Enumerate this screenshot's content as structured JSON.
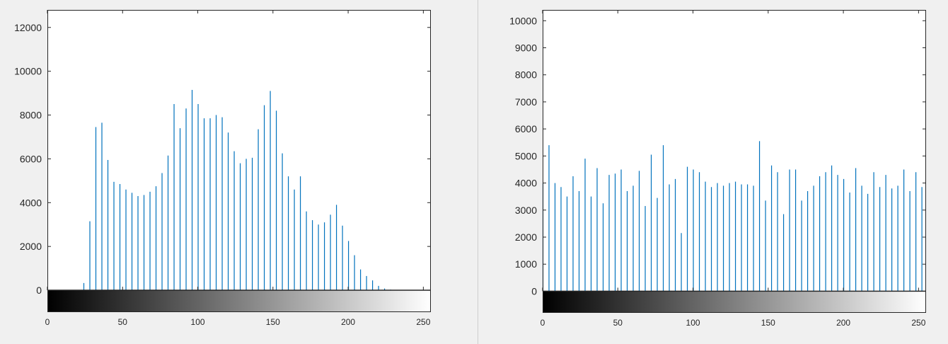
{
  "figure": {
    "colors": {
      "background": "#f0f0f0",
      "axes_background": "#ffffff",
      "axis": "#262626",
      "stem": "#0072bd",
      "divider": "#cfcfcf"
    }
  },
  "chart_data": [
    {
      "type": "bar",
      "subtype": "stem-histogram",
      "title": "",
      "xlabel": "",
      "ylabel": "",
      "xlim": [
        0,
        255
      ],
      "ylim": [
        -1000,
        12800
      ],
      "xticks": [
        0,
        50,
        100,
        150,
        200,
        250
      ],
      "yticks": [
        0,
        2000,
        4000,
        6000,
        8000,
        10000,
        12000
      ],
      "grid": false,
      "legend": "none",
      "colorbar": "grayscale gradient below x-axis (0 = black, 255 = white)",
      "x": [
        0,
        4,
        8,
        12,
        16,
        20,
        24,
        28,
        32,
        36,
        40,
        44,
        48,
        52,
        56,
        60,
        64,
        68,
        72,
        76,
        80,
        84,
        88,
        92,
        96,
        100,
        104,
        108,
        112,
        116,
        120,
        124,
        128,
        132,
        136,
        140,
        144,
        148,
        152,
        156,
        160,
        164,
        168,
        172,
        176,
        180,
        184,
        188,
        192,
        196,
        200,
        204,
        208,
        212,
        216,
        220,
        224,
        228,
        232,
        236,
        240,
        244,
        248,
        252
      ],
      "values": [
        0,
        0,
        0,
        0,
        0,
        0,
        330,
        3150,
        7450,
        7650,
        5950,
        4950,
        4850,
        4600,
        4450,
        4300,
        4350,
        4500,
        4750,
        5350,
        6150,
        8500,
        7400,
        8300,
        9150,
        8500,
        7850,
        7850,
        8000,
        7900,
        7200,
        6350,
        5800,
        6000,
        6050,
        7350,
        8450,
        9100,
        8200,
        6250,
        5200,
        4600,
        5200,
        3600,
        3200,
        3000,
        3100,
        3450,
        3900,
        2950,
        2250,
        1600,
        950,
        650,
        450,
        200,
        80,
        30,
        10,
        0,
        0,
        0,
        0,
        0
      ]
    },
    {
      "type": "bar",
      "subtype": "stem-histogram",
      "title": "",
      "xlabel": "",
      "ylabel": "",
      "xlim": [
        0,
        255
      ],
      "ylim": [
        -800,
        10400
      ],
      "xticks": [
        0,
        50,
        100,
        150,
        200,
        250
      ],
      "yticks": [
        0,
        1000,
        2000,
        3000,
        4000,
        5000,
        6000,
        7000,
        8000,
        9000,
        10000
      ],
      "grid": false,
      "legend": "none",
      "colorbar": "grayscale gradient below x-axis (0 = black, 255 = white)",
      "x": [
        0,
        4,
        8,
        12,
        16,
        20,
        24,
        28,
        32,
        36,
        40,
        44,
        48,
        52,
        56,
        60,
        64,
        68,
        72,
        76,
        80,
        84,
        88,
        92,
        96,
        100,
        104,
        108,
        112,
        116,
        120,
        124,
        128,
        132,
        136,
        140,
        144,
        148,
        152,
        156,
        160,
        164,
        168,
        172,
        176,
        180,
        184,
        188,
        192,
        196,
        200,
        204,
        208,
        212,
        216,
        220,
        224,
        228,
        232,
        236,
        240,
        244,
        248,
        252
      ],
      "values": [
        4000,
        5400,
        4000,
        3850,
        3500,
        4250,
        3700,
        4900,
        3500,
        4550,
        3250,
        4300,
        4350,
        4500,
        3700,
        3900,
        4450,
        3150,
        5050,
        3450,
        5400,
        3950,
        4150,
        2150,
        4600,
        4500,
        4400,
        4050,
        3850,
        4000,
        3900,
        4000,
        4050,
        3950,
        3950,
        3900,
        5550,
        3350,
        4650,
        4400,
        2850,
        4500,
        4500,
        3350,
        3700,
        3900,
        4250,
        4400,
        4650,
        4300,
        4150,
        3650,
        4550,
        3900,
        3600,
        4400,
        3850,
        4300,
        3800,
        3900,
        4500,
        3700,
        4400,
        3850
      ]
    }
  ]
}
